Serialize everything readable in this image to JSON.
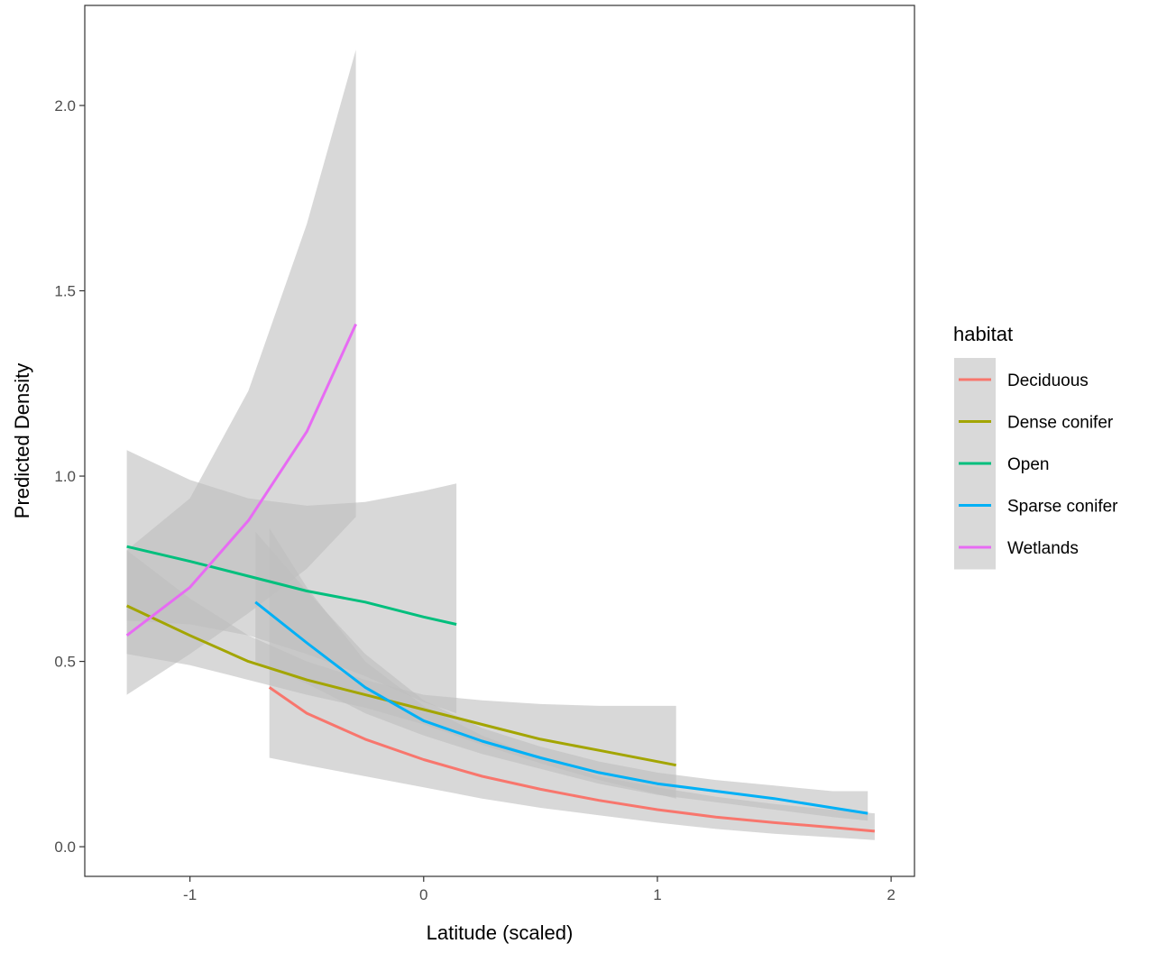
{
  "chart_data": {
    "type": "line",
    "title": "",
    "xlabel": "Latitude (scaled)",
    "ylabel": "Predicted Density",
    "xlim": [
      -1.45,
      2.1
    ],
    "ylim": [
      -0.08,
      2.27
    ],
    "xticks": [
      -1,
      0,
      1,
      2
    ],
    "xtick_labels": [
      "-1",
      "0",
      "1",
      "2"
    ],
    "yticks": [
      0,
      0.5,
      1,
      1.5,
      2
    ],
    "ytick_labels": [
      "0.0",
      "0.5",
      "1.0",
      "1.5",
      "2.0"
    ],
    "grid": false,
    "legend": {
      "title": "habitat",
      "position": "right"
    },
    "ribbon_color": "#bebebe",
    "series": [
      {
        "name": "Deciduous",
        "color": "#F8766D",
        "x": [
          -0.66,
          -0.5,
          -0.25,
          0,
          0.25,
          0.5,
          0.75,
          1,
          1.25,
          1.5,
          1.75,
          1.93
        ],
        "y": [
          0.43,
          0.36,
          0.29,
          0.235,
          0.19,
          0.155,
          0.125,
          0.1,
          0.08,
          0.065,
          0.052,
          0.042
        ],
        "lower": [
          0.24,
          0.22,
          0.19,
          0.16,
          0.13,
          0.105,
          0.085,
          0.065,
          0.048,
          0.035,
          0.025,
          0.018
        ],
        "upper": [
          0.86,
          0.7,
          0.5,
          0.38,
          0.3,
          0.24,
          0.19,
          0.16,
          0.135,
          0.115,
          0.1,
          0.09
        ]
      },
      {
        "name": "Dense conifer",
        "color": "#A3A500",
        "x": [
          -1.27,
          -1,
          -0.75,
          -0.5,
          -0.25,
          0,
          0.25,
          0.5,
          0.75,
          1.08
        ],
        "y": [
          0.65,
          0.57,
          0.5,
          0.45,
          0.41,
          0.37,
          0.33,
          0.29,
          0.26,
          0.22
        ],
        "lower": [
          0.52,
          0.49,
          0.45,
          0.41,
          0.375,
          0.33,
          0.275,
          0.225,
          0.18,
          0.13
        ],
        "upper": [
          0.8,
          0.67,
          0.57,
          0.5,
          0.45,
          0.41,
          0.395,
          0.385,
          0.38,
          0.38
        ]
      },
      {
        "name": "Open",
        "color": "#00BF7D",
        "x": [
          -1.27,
          -1,
          -0.75,
          -0.5,
          -0.25,
          0,
          0.14
        ],
        "y": [
          0.81,
          0.77,
          0.73,
          0.69,
          0.66,
          0.62,
          0.6
        ],
        "lower": [
          0.61,
          0.6,
          0.57,
          0.52,
          0.46,
          0.39,
          0.36
        ],
        "upper": [
          1.07,
          0.99,
          0.94,
          0.92,
          0.93,
          0.96,
          0.98
        ]
      },
      {
        "name": "Sparse conifer",
        "color": "#00B0F6",
        "x": [
          -0.72,
          -0.5,
          -0.25,
          0,
          0.25,
          0.5,
          0.75,
          1,
          1.25,
          1.5,
          1.75,
          1.9
        ],
        "y": [
          0.66,
          0.55,
          0.43,
          0.34,
          0.285,
          0.24,
          0.2,
          0.17,
          0.15,
          0.13,
          0.105,
          0.09
        ],
        "lower": [
          0.5,
          0.44,
          0.36,
          0.3,
          0.25,
          0.21,
          0.17,
          0.14,
          0.12,
          0.1,
          0.08,
          0.07
        ],
        "upper": [
          0.85,
          0.69,
          0.52,
          0.395,
          0.32,
          0.27,
          0.23,
          0.2,
          0.18,
          0.165,
          0.15,
          0.15
        ]
      },
      {
        "name": "Wetlands",
        "color": "#E76BF3",
        "x": [
          -1.27,
          -1,
          -0.75,
          -0.5,
          -0.29
        ],
        "y": [
          0.57,
          0.7,
          0.88,
          1.12,
          1.41
        ],
        "lower": [
          0.41,
          0.52,
          0.63,
          0.75,
          0.89
        ],
        "upper": [
          0.8,
          0.94,
          1.23,
          1.68,
          2.15
        ]
      }
    ]
  }
}
